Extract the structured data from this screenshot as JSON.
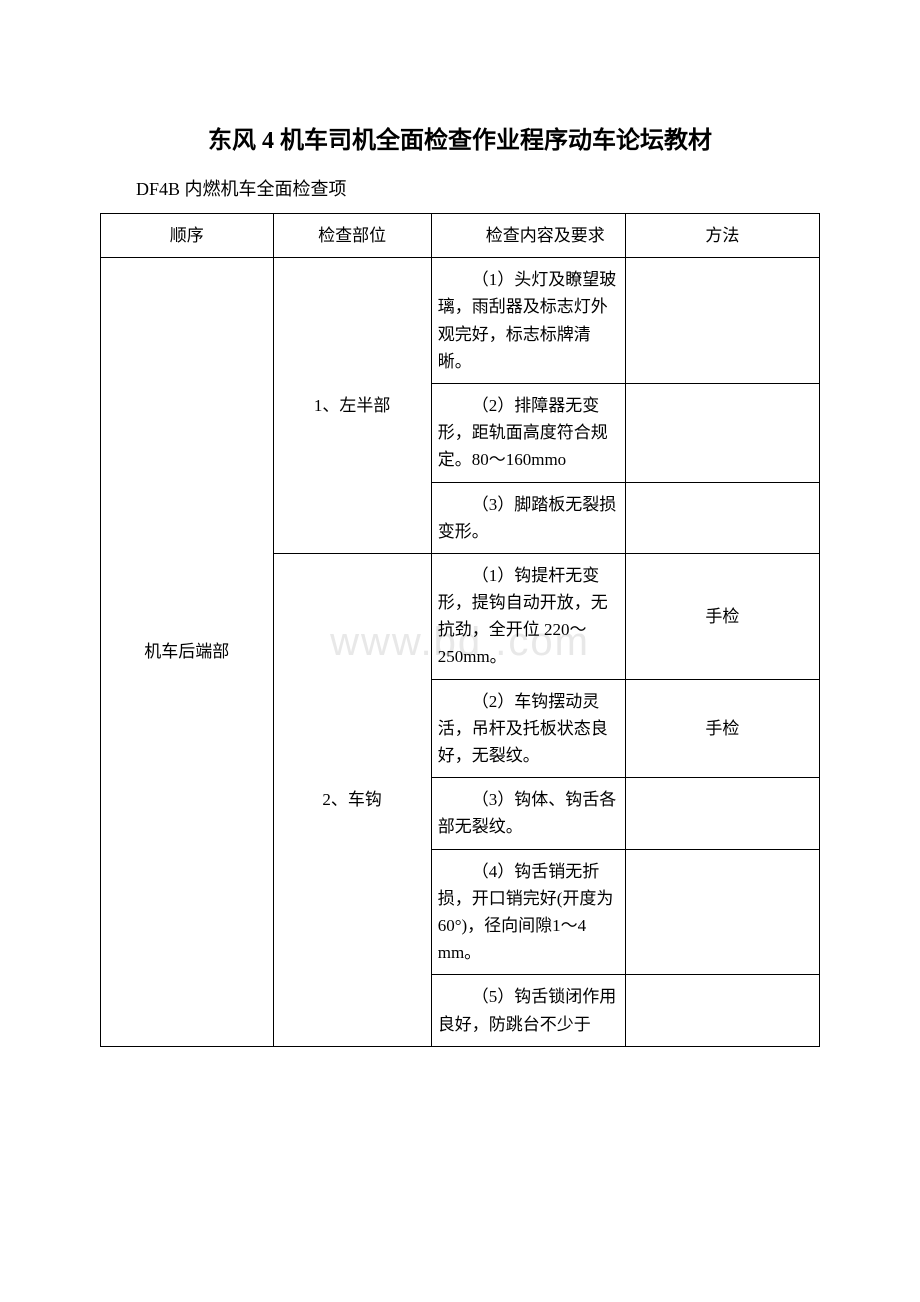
{
  "title": "东风 4 机车司机全面检查作业程序动车论坛教材",
  "subtitle": "DF4B 内燃机车全面检查项",
  "watermark": "www.bd .com",
  "table": {
    "columns": {
      "seq": "顺序",
      "part": "检查部位",
      "content": "检查内容及要求",
      "method": "方法"
    },
    "section_label": "机车后端部",
    "groups": [
      {
        "part_label": "1、左半部",
        "rows": [
          {
            "content": "（1）头灯及瞭望玻璃，雨刮器及标志灯外观完好，标志标牌清晰。",
            "method": ""
          },
          {
            "content": "（2）排障器无变形，距轨面高度符合规定。80～160mmo",
            "method": ""
          },
          {
            "content": "（3）脚踏板无裂损变形。",
            "method": ""
          }
        ]
      },
      {
        "part_label": "2、车钩",
        "rows": [
          {
            "content": "（1）钩提杆无变形，提钩自动开放，无抗劲，全开位 220～250mm。",
            "method": "手检"
          },
          {
            "content": "（2）车钩摆动灵活，吊杆及托板状态良好，无裂纹。",
            "method": "手检"
          },
          {
            "content": "（3）钩体、钩舌各部无裂纹。",
            "method": ""
          },
          {
            "content": "（4）钩舌销无折损，开口销完好(开度为60°)，径向间隙1～4 mm。",
            "method": ""
          },
          {
            "content": "（5）钩舌锁闭作用良好，防跳台不少于",
            "method": ""
          }
        ]
      }
    ]
  }
}
